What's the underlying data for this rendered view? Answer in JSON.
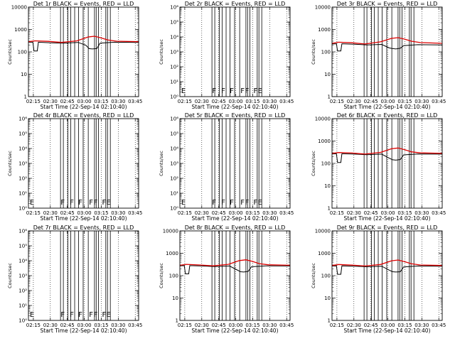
{
  "chart_data": [
    {
      "type": "line",
      "title": "Det 1r BLACK = Events, RED = LLD",
      "xlabel": "Start Time (22-Sep-14 02:10:40)",
      "ylabel": "Counts/sec",
      "ylim": [
        1,
        10000
      ],
      "ytick_labels": [
        "1",
        "10",
        "100",
        "1000",
        "10000"
      ],
      "events_profile": [
        [
          0.0,
          270
        ],
        [
          0.04,
          270
        ],
        [
          0.05,
          110
        ],
        [
          0.08,
          110
        ],
        [
          0.09,
          270
        ],
        [
          0.2,
          255
        ],
        [
          0.32,
          245
        ],
        [
          0.45,
          265
        ],
        [
          0.52,
          200
        ],
        [
          0.55,
          140
        ],
        [
          0.58,
          135
        ],
        [
          0.62,
          140
        ],
        [
          0.65,
          245
        ],
        [
          0.78,
          270
        ],
        [
          1.0,
          265
        ]
      ],
      "lld_profile": [
        [
          0.0,
          285
        ],
        [
          0.06,
          310
        ],
        [
          0.18,
          295
        ],
        [
          0.3,
          265
        ],
        [
          0.44,
          310
        ],
        [
          0.54,
          460
        ],
        [
          0.6,
          500
        ],
        [
          0.66,
          420
        ],
        [
          0.72,
          340
        ],
        [
          0.8,
          300
        ],
        [
          1.0,
          285
        ]
      ]
    },
    {
      "type": "line",
      "title": "Det 2r BLACK = Events, RED = LLD",
      "xlabel": "Start Time (22-Sep-14 02:10:40)",
      "ylabel": "Counts/sec",
      "ylim": [
        1,
        1000000
      ],
      "ytick_labels": [
        "10⁰",
        "10¹",
        "10²",
        "10³",
        "10⁴",
        "10⁵",
        "10⁶"
      ],
      "markers": [
        "E",
        "F",
        "F",
        "F",
        "F",
        "F",
        "F",
        "E"
      ]
    },
    {
      "type": "line",
      "title": "Det 3r BLACK = Events, RED = LLD",
      "xlabel": "Start Time (22-Sep-14 02:10:40)",
      "ylabel": "Counts/sec",
      "ylim": [
        1,
        10000
      ],
      "ytick_labels": [
        "1",
        "10",
        "100",
        "1000",
        "10000"
      ],
      "events_profile": [
        [
          0.0,
          225
        ],
        [
          0.04,
          230
        ],
        [
          0.05,
          110
        ],
        [
          0.08,
          110
        ],
        [
          0.09,
          230
        ],
        [
          0.2,
          220
        ],
        [
          0.32,
          205
        ],
        [
          0.45,
          215
        ],
        [
          0.52,
          150
        ],
        [
          0.55,
          140
        ],
        [
          0.58,
          135
        ],
        [
          0.62,
          145
        ],
        [
          0.65,
          190
        ],
        [
          0.78,
          210
        ],
        [
          1.0,
          205
        ]
      ],
      "lld_profile": [
        [
          0.0,
          240
        ],
        [
          0.06,
          270
        ],
        [
          0.18,
          255
        ],
        [
          0.3,
          225
        ],
        [
          0.44,
          280
        ],
        [
          0.54,
          400
        ],
        [
          0.6,
          430
        ],
        [
          0.66,
          370
        ],
        [
          0.72,
          300
        ],
        [
          0.8,
          260
        ],
        [
          1.0,
          240
        ]
      ]
    },
    {
      "type": "line",
      "title": "Det 4r BLACK = Events, RED = LLD",
      "xlabel": "Start Time (22-Sep-14 02:10:40)",
      "ylabel": "Counts/sec",
      "ylim": [
        1,
        1000000
      ],
      "ytick_labels": [
        "10⁰",
        "10¹",
        "10²",
        "10³",
        "10⁴",
        "10⁵",
        "10⁶"
      ],
      "markers": [
        "E",
        "F",
        "F",
        "F",
        "F",
        "F",
        "F",
        "E"
      ]
    },
    {
      "type": "line",
      "title": "Det 5r BLACK = Events, RED = LLD",
      "xlabel": "Start Time (22-Sep-14 02:10:40)",
      "ylabel": "Counts/sec",
      "ylim": [
        1,
        1000000
      ],
      "ytick_labels": [
        "10⁰",
        "10¹",
        "10²",
        "10³",
        "10⁴",
        "10⁵",
        "10⁶"
      ],
      "markers": [
        "E",
        "F",
        "F",
        "F",
        "F",
        "F",
        "F",
        "E"
      ]
    },
    {
      "type": "line",
      "title": "Det 6r BLACK = Events, RED = LLD",
      "xlabel": "Start Time (22-Sep-14 02:10:40)",
      "ylabel": "Counts/sec",
      "ylim": [
        1,
        10000
      ],
      "ytick_labels": [
        "1",
        "10",
        "100",
        "1000",
        "10000"
      ],
      "events_profile": [
        [
          0.0,
          265
        ],
        [
          0.04,
          270
        ],
        [
          0.05,
          110
        ],
        [
          0.08,
          110
        ],
        [
          0.09,
          270
        ],
        [
          0.2,
          260
        ],
        [
          0.32,
          245
        ],
        [
          0.45,
          260
        ],
        [
          0.52,
          170
        ],
        [
          0.55,
          145
        ],
        [
          0.58,
          140
        ],
        [
          0.62,
          150
        ],
        [
          0.65,
          240
        ],
        [
          0.78,
          265
        ],
        [
          1.0,
          260
        ]
      ],
      "lld_profile": [
        [
          0.0,
          280
        ],
        [
          0.06,
          305
        ],
        [
          0.18,
          290
        ],
        [
          0.3,
          260
        ],
        [
          0.44,
          310
        ],
        [
          0.54,
          450
        ],
        [
          0.6,
          490
        ],
        [
          0.66,
          410
        ],
        [
          0.72,
          330
        ],
        [
          0.8,
          295
        ],
        [
          1.0,
          280
        ]
      ]
    },
    {
      "type": "line",
      "title": "Det 7r BLACK = Events, RED = LLD",
      "xlabel": "Start Time (22-Sep-14 02:10:40)",
      "ylabel": "Counts/sec",
      "ylim": [
        1,
        1000000
      ],
      "ytick_labels": [
        "10⁰",
        "10¹",
        "10²",
        "10³",
        "10⁴",
        "10⁵",
        "10⁶"
      ],
      "markers": [
        "E",
        "F",
        "F",
        "F",
        "F",
        "F",
        "F",
        "E"
      ]
    },
    {
      "type": "line",
      "title": "Det 8r BLACK = Events, RED = LLD",
      "xlabel": "Start Time (22-Sep-14 02:10:40)",
      "ylabel": "Counts/sec",
      "ylim": [
        1,
        10000
      ],
      "ytick_labels": [
        "1",
        "10",
        "100",
        "1000",
        "10000"
      ],
      "events_profile": [
        [
          0.0,
          275
        ],
        [
          0.04,
          280
        ],
        [
          0.05,
          120
        ],
        [
          0.08,
          120
        ],
        [
          0.09,
          280
        ],
        [
          0.2,
          270
        ],
        [
          0.32,
          255
        ],
        [
          0.45,
          270
        ],
        [
          0.52,
          180
        ],
        [
          0.55,
          150
        ],
        [
          0.58,
          145
        ],
        [
          0.62,
          155
        ],
        [
          0.65,
          250
        ],
        [
          0.78,
          275
        ],
        [
          1.0,
          270
        ]
      ],
      "lld_profile": [
        [
          0.0,
          290
        ],
        [
          0.06,
          320
        ],
        [
          0.18,
          300
        ],
        [
          0.3,
          275
        ],
        [
          0.44,
          320
        ],
        [
          0.54,
          470
        ],
        [
          0.6,
          510
        ],
        [
          0.66,
          430
        ],
        [
          0.72,
          345
        ],
        [
          0.8,
          305
        ],
        [
          1.0,
          290
        ]
      ]
    },
    {
      "type": "line",
      "title": "Det 9r BLACK = Events, RED = LLD",
      "xlabel": "Start Time (22-Sep-14 02:10:40)",
      "ylabel": "Counts/sec",
      "ylim": [
        1,
        10000
      ],
      "ytick_labels": [
        "1",
        "10",
        "100",
        "1000",
        "10000"
      ],
      "events_profile": [
        [
          0.0,
          270
        ],
        [
          0.04,
          275
        ],
        [
          0.05,
          115
        ],
        [
          0.08,
          115
        ],
        [
          0.09,
          275
        ],
        [
          0.2,
          265
        ],
        [
          0.32,
          250
        ],
        [
          0.45,
          265
        ],
        [
          0.52,
          175
        ],
        [
          0.55,
          150
        ],
        [
          0.58,
          145
        ],
        [
          0.62,
          150
        ],
        [
          0.65,
          245
        ],
        [
          0.78,
          270
        ],
        [
          1.0,
          265
        ]
      ],
      "lld_profile": [
        [
          0.0,
          285
        ],
        [
          0.06,
          315
        ],
        [
          0.18,
          295
        ],
        [
          0.3,
          270
        ],
        [
          0.44,
          315
        ],
        [
          0.54,
          460
        ],
        [
          0.6,
          500
        ],
        [
          0.66,
          420
        ],
        [
          0.72,
          340
        ],
        [
          0.8,
          300
        ],
        [
          1.0,
          285
        ]
      ]
    }
  ],
  "x_ticks": [
    "02:15",
    "02:30",
    "02:45",
    "03:00",
    "03:15",
    "03:30",
    "03:45"
  ],
  "colors": {
    "events": "#000000",
    "lld": "#dd0000",
    "grid": "#000000"
  }
}
